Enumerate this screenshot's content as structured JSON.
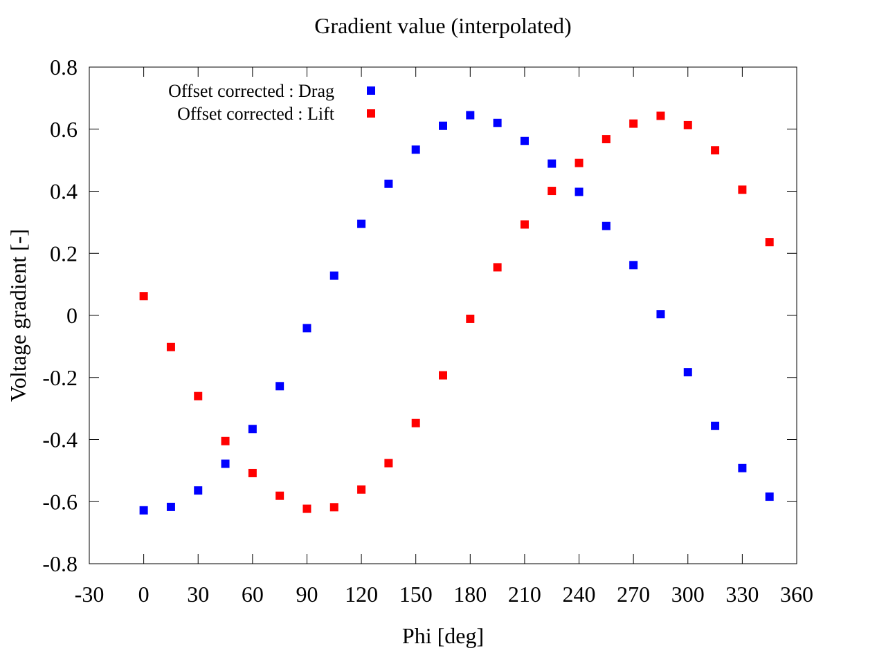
{
  "chart_data": {
    "type": "scatter",
    "title": "Gradient value (interpolated)",
    "xlabel": "Phi [deg]",
    "ylabel": "Voltage gradient [-]",
    "xlim": [
      -30,
      360
    ],
    "ylim": [
      -0.8,
      0.8
    ],
    "xticks": [
      -30,
      0,
      30,
      60,
      90,
      120,
      150,
      180,
      210,
      240,
      270,
      300,
      330,
      360
    ],
    "yticks": [
      -0.8,
      -0.6,
      -0.4,
      -0.2,
      0,
      0.2,
      0.4,
      0.6,
      0.8
    ],
    "ytick_labels": [
      "-0.8",
      "-0.6",
      "-0.4",
      "-0.2",
      "0",
      "0.2",
      "0.4",
      "0.6",
      "0.8"
    ],
    "grid": false,
    "legend_position": "top-left",
    "x": [
      0,
      15,
      30,
      45,
      60,
      75,
      90,
      105,
      120,
      135,
      150,
      165,
      180,
      195,
      210,
      225,
      240,
      255,
      270,
      285,
      300,
      315,
      330,
      345
    ],
    "series": [
      {
        "name": "Offset corrected : Drag",
        "color": "#0000ff",
        "marker": "square",
        "values": [
          -0.628,
          -0.617,
          -0.564,
          -0.478,
          -0.366,
          -0.228,
          -0.041,
          0.128,
          0.295,
          0.424,
          0.534,
          0.611,
          0.645,
          0.62,
          0.562,
          0.489,
          0.398,
          0.288,
          0.162,
          0.004,
          -0.183,
          -0.356,
          -0.492,
          -0.584
        ]
      },
      {
        "name": "Offset corrected : Lift",
        "color": "#ff0000",
        "marker": "square",
        "values": [
          0.062,
          -0.102,
          -0.26,
          -0.405,
          -0.508,
          -0.581,
          -0.623,
          -0.618,
          -0.561,
          -0.476,
          -0.347,
          -0.193,
          -0.011,
          0.155,
          0.293,
          0.401,
          0.491,
          0.568,
          0.618,
          0.643,
          0.613,
          0.532,
          0.405,
          0.236
        ]
      }
    ]
  }
}
